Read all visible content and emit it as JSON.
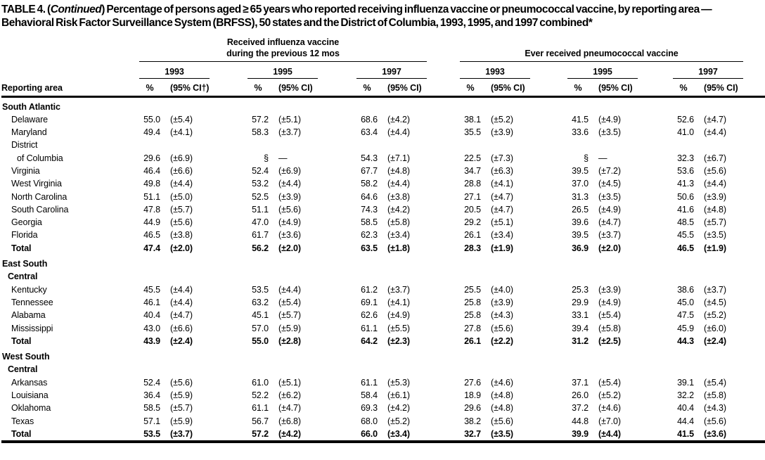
{
  "title": {
    "prefix": "TABLE 4. (",
    "italic": "Continued",
    "suffix": ") Percentage of persons aged ≥ 65 years who reported receiving influenza vaccine or pneumococcal vaccine, by reporting area — Behavioral Risk Factor Surveillance System (BRFSS), 50 states and the District of Columbia, 1993, 1995, and 1997 combined*"
  },
  "header": {
    "reporting_area": "Reporting area",
    "flu_group": {
      "line1": "Received influenza vaccine",
      "line2": "during the previous 12 mos",
      "years": [
        "1993",
        "1995",
        "1997"
      ]
    },
    "pneumo_group": {
      "line1": "Ever received pneumococcal vaccine",
      "years": [
        "1993",
        "1995",
        "1997"
      ]
    },
    "pct": "%",
    "ci": "(95% CI)",
    "ci_dagger": "(95% CI†)"
  },
  "footnote_symbols": {
    "suppressed": "§",
    "no_value": "—"
  },
  "rows": [
    {
      "type": "section",
      "label": "South Atlantic",
      "cells": null
    },
    {
      "type": "state",
      "label": "Delaware",
      "cells": [
        [
          "55.0",
          "(±5.4)"
        ],
        [
          "57.2",
          "(±5.1)"
        ],
        [
          "68.6",
          "(±4.2)"
        ],
        [
          "38.1",
          "(±5.2)"
        ],
        [
          "41.5",
          "(±4.9)"
        ],
        [
          "52.6",
          "(±4.7)"
        ]
      ]
    },
    {
      "type": "state",
      "label": "Maryland",
      "cells": [
        [
          "49.4",
          "(±4.1)"
        ],
        [
          "58.3",
          "(±3.7)"
        ],
        [
          "63.4",
          "(±4.4)"
        ],
        [
          "35.5",
          "(±3.9)"
        ],
        [
          "33.6",
          "(±3.5)"
        ],
        [
          "41.0",
          "(±4.4)"
        ]
      ]
    },
    {
      "type": "state",
      "label": "District",
      "cells": null
    },
    {
      "type": "state-cont",
      "label": "of Columbia",
      "cells": [
        [
          "29.6",
          "(±6.9)"
        ],
        [
          "§",
          "—"
        ],
        [
          "54.3",
          "(±7.1)"
        ],
        [
          "22.5",
          "(±7.3)"
        ],
        [
          "§",
          "—"
        ],
        [
          "32.3",
          "(±6.7)"
        ]
      ]
    },
    {
      "type": "state",
      "label": "Virginia",
      "cells": [
        [
          "46.4",
          "(±6.6)"
        ],
        [
          "52.4",
          "(±6.9)"
        ],
        [
          "67.7",
          "(±4.8)"
        ],
        [
          "34.7",
          "(±6.3)"
        ],
        [
          "39.5",
          "(±7.2)"
        ],
        [
          "53.6",
          "(±5.6)"
        ]
      ]
    },
    {
      "type": "state",
      "label": "West Virginia",
      "cells": [
        [
          "49.8",
          "(±4.4)"
        ],
        [
          "53.2",
          "(±4.4)"
        ],
        [
          "58.2",
          "(±4.4)"
        ],
        [
          "28.8",
          "(±4.1)"
        ],
        [
          "37.0",
          "(±4.5)"
        ],
        [
          "41.3",
          "(±4.4)"
        ]
      ]
    },
    {
      "type": "state",
      "label": "North Carolina",
      "cells": [
        [
          "51.1",
          "(±5.0)"
        ],
        [
          "52.5",
          "(±3.9)"
        ],
        [
          "64.6",
          "(±3.8)"
        ],
        [
          "27.1",
          "(±4.7)"
        ],
        [
          "31.3",
          "(±3.5)"
        ],
        [
          "50.6",
          "(±3.9)"
        ]
      ]
    },
    {
      "type": "state",
      "label": "South Carolina",
      "cells": [
        [
          "47.8",
          "(±5.7)"
        ],
        [
          "51.1",
          "(±5.6)"
        ],
        [
          "74.3",
          "(±4.2)"
        ],
        [
          "20.5",
          "(±4.7)"
        ],
        [
          "26.5",
          "(±4.9)"
        ],
        [
          "41.6",
          "(±4.8)"
        ]
      ]
    },
    {
      "type": "state",
      "label": "Georgia",
      "cells": [
        [
          "44.9",
          "(±5.6)"
        ],
        [
          "47.0",
          "(±4.9)"
        ],
        [
          "58.5",
          "(±5.8)"
        ],
        [
          "29.2",
          "(±5.1)"
        ],
        [
          "39.6",
          "(±4.7)"
        ],
        [
          "48.5",
          "(±5.7)"
        ]
      ]
    },
    {
      "type": "state",
      "label": "Florida",
      "cells": [
        [
          "46.5",
          "(±3.8)"
        ],
        [
          "61.7",
          "(±3.6)"
        ],
        [
          "62.3",
          "(±3.4)"
        ],
        [
          "26.1",
          "(±3.4)"
        ],
        [
          "39.5",
          "(±3.7)"
        ],
        [
          "45.5",
          "(±3.5)"
        ]
      ]
    },
    {
      "type": "total",
      "label": "Total",
      "cells": [
        [
          "47.4",
          "(±2.0)"
        ],
        [
          "56.2",
          "(±2.0)"
        ],
        [
          "63.5",
          "(±1.8)"
        ],
        [
          "28.3",
          "(±1.9)"
        ],
        [
          "36.9",
          "(±2.0)"
        ],
        [
          "46.5",
          "(±1.9)"
        ]
      ]
    },
    {
      "type": "section",
      "label": "East South",
      "cells": null
    },
    {
      "type": "section-cont",
      "label": "Central",
      "cells": null
    },
    {
      "type": "state",
      "label": "Kentucky",
      "cells": [
        [
          "45.5",
          "(±4.4)"
        ],
        [
          "53.5",
          "(±4.4)"
        ],
        [
          "61.2",
          "(±3.7)"
        ],
        [
          "25.5",
          "(±4.0)"
        ],
        [
          "25.3",
          "(±3.9)"
        ],
        [
          "38.6",
          "(±3.7)"
        ]
      ]
    },
    {
      "type": "state",
      "label": "Tennessee",
      "cells": [
        [
          "46.1",
          "(±4.4)"
        ],
        [
          "63.2",
          "(±5.4)"
        ],
        [
          "69.1",
          "(±4.1)"
        ],
        [
          "25.8",
          "(±3.9)"
        ],
        [
          "29.9",
          "(±4.9)"
        ],
        [
          "45.0",
          "(±4.5)"
        ]
      ]
    },
    {
      "type": "state",
      "label": "Alabama",
      "cells": [
        [
          "40.4",
          "(±4.7)"
        ],
        [
          "45.1",
          "(±5.7)"
        ],
        [
          "62.6",
          "(±4.9)"
        ],
        [
          "25.8",
          "(±4.3)"
        ],
        [
          "33.1",
          "(±5.4)"
        ],
        [
          "47.5",
          "(±5.2)"
        ]
      ]
    },
    {
      "type": "state",
      "label": "Mississippi",
      "cells": [
        [
          "43.0",
          "(±6.6)"
        ],
        [
          "57.0",
          "(±5.9)"
        ],
        [
          "61.1",
          "(±5.5)"
        ],
        [
          "27.8",
          "(±5.6)"
        ],
        [
          "39.4",
          "(±5.8)"
        ],
        [
          "45.9",
          "(±6.0)"
        ]
      ]
    },
    {
      "type": "total",
      "label": "Total",
      "cells": [
        [
          "43.9",
          "(±2.4)"
        ],
        [
          "55.0",
          "(±2.8)"
        ],
        [
          "64.2",
          "(±2.3)"
        ],
        [
          "26.1",
          "(±2.2)"
        ],
        [
          "31.2",
          "(±2.5)"
        ],
        [
          "44.3",
          "(±2.4)"
        ]
      ]
    },
    {
      "type": "section",
      "label": "West South",
      "cells": null
    },
    {
      "type": "section-cont",
      "label": "Central",
      "cells": null
    },
    {
      "type": "state",
      "label": "Arkansas",
      "cells": [
        [
          "52.4",
          "(±5.6)"
        ],
        [
          "61.0",
          "(±5.1)"
        ],
        [
          "61.1",
          "(±5.3)"
        ],
        [
          "27.6",
          "(±4.6)"
        ],
        [
          "37.1",
          "(±5.4)"
        ],
        [
          "39.1",
          "(±5.4)"
        ]
      ]
    },
    {
      "type": "state",
      "label": "Louisiana",
      "cells": [
        [
          "36.4",
          "(±5.9)"
        ],
        [
          "52.2",
          "(±6.2)"
        ],
        [
          "58.4",
          "(±6.1)"
        ],
        [
          "18.9",
          "(±4.8)"
        ],
        [
          "26.0",
          "(±5.2)"
        ],
        [
          "32.2",
          "(±5.8)"
        ]
      ]
    },
    {
      "type": "state",
      "label": "Oklahoma",
      "cells": [
        [
          "58.5",
          "(±5.7)"
        ],
        [
          "61.1",
          "(±4.7)"
        ],
        [
          "69.3",
          "(±4.2)"
        ],
        [
          "29.6",
          "(±4.8)"
        ],
        [
          "37.2",
          "(±4.6)"
        ],
        [
          "40.4",
          "(±4.3)"
        ]
      ]
    },
    {
      "type": "state",
      "label": "Texas",
      "cells": [
        [
          "57.1",
          "(±5.9)"
        ],
        [
          "56.7",
          "(±6.8)"
        ],
        [
          "68.0",
          "(±5.2)"
        ],
        [
          "38.2",
          "(±5.6)"
        ],
        [
          "44.8",
          "(±7.0)"
        ],
        [
          "44.4",
          "(±5.6)"
        ]
      ]
    },
    {
      "type": "total",
      "label": "Total",
      "cells": [
        [
          "53.5",
          "(±3.7)"
        ],
        [
          "57.2",
          "(±4.2)"
        ],
        [
          "66.0",
          "(±3.4)"
        ],
        [
          "32.7",
          "(±3.5)"
        ],
        [
          "39.9",
          "(±4.4)"
        ],
        [
          "41.5",
          "(±3.6)"
        ]
      ]
    }
  ]
}
